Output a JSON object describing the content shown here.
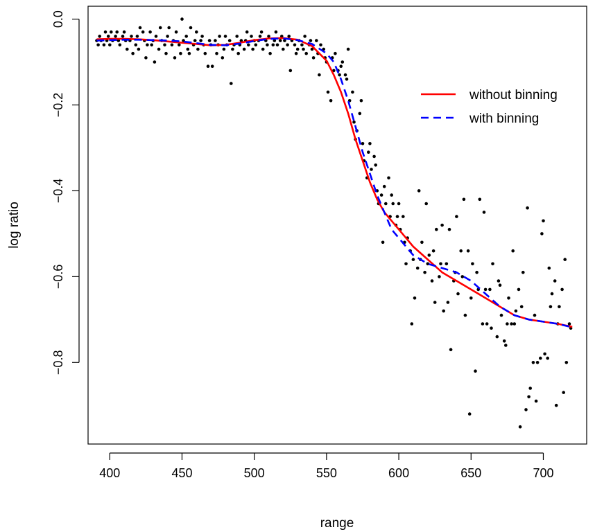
{
  "chart_data": {
    "type": "scatter",
    "xlabel": "range",
    "ylabel": "log ratio",
    "xlim": [
      385,
      730
    ],
    "ylim": [
      -0.99,
      0.03
    ],
    "x_ticks": [
      400,
      450,
      500,
      550,
      600,
      650,
      700
    ],
    "x_tick_labels": [
      "400",
      "450",
      "500",
      "550",
      "600",
      "650",
      "700"
    ],
    "y_ticks": [
      0.0,
      -0.2,
      -0.4,
      -0.6,
      -0.8
    ],
    "y_tick_labels": [
      "0.0",
      "−0.2",
      "−0.4",
      "−0.6",
      "−0.8"
    ],
    "grid": false,
    "legend_position": "top-right",
    "points": [
      [
        391,
        -0.05
      ],
      [
        392,
        -0.06
      ],
      [
        393,
        -0.04
      ],
      [
        394,
        -0.05
      ],
      [
        396,
        -0.06
      ],
      [
        397,
        -0.03
      ],
      [
        398,
        -0.05
      ],
      [
        399,
        -0.04
      ],
      [
        400,
        -0.06
      ],
      [
        401,
        -0.03
      ],
      [
        402,
        -0.05
      ],
      [
        404,
        -0.04
      ],
      [
        405,
        -0.03
      ],
      [
        406,
        -0.05
      ],
      [
        407,
        -0.06
      ],
      [
        409,
        -0.04
      ],
      [
        410,
        -0.03
      ],
      [
        411,
        -0.05
      ],
      [
        412,
        -0.07
      ],
      [
        414,
        -0.05
      ],
      [
        415,
        -0.04
      ],
      [
        416,
        -0.08
      ],
      [
        418,
        -0.06
      ],
      [
        419,
        -0.04
      ],
      [
        420,
        -0.07
      ],
      [
        421,
        -0.02
      ],
      [
        423,
        -0.03
      ],
      [
        424,
        -0.05
      ],
      [
        425,
        -0.09
      ],
      [
        426,
        -0.06
      ],
      [
        428,
        -0.03
      ],
      [
        429,
        -0.06
      ],
      [
        430,
        -0.05
      ],
      [
        431,
        -0.1
      ],
      [
        432,
        -0.04
      ],
      [
        434,
        -0.07
      ],
      [
        435,
        -0.02
      ],
      [
        436,
        -0.05
      ],
      [
        438,
        -0.06
      ],
      [
        439,
        -0.08
      ],
      [
        440,
        -0.04
      ],
      [
        441,
        -0.02
      ],
      [
        443,
        -0.06
      ],
      [
        444,
        -0.05
      ],
      [
        445,
        -0.09
      ],
      [
        446,
        -0.03
      ],
      [
        448,
        -0.06
      ],
      [
        449,
        -0.08
      ],
      [
        450,
        0.0
      ],
      [
        451,
        -0.05
      ],
      [
        453,
        -0.04
      ],
      [
        454,
        -0.07
      ],
      [
        455,
        -0.08
      ],
      [
        456,
        -0.02
      ],
      [
        458,
        -0.06
      ],
      [
        459,
        -0.05
      ],
      [
        460,
        -0.03
      ],
      [
        461,
        -0.07
      ],
      [
        463,
        -0.05
      ],
      [
        464,
        -0.04
      ],
      [
        465,
        -0.06
      ],
      [
        466,
        -0.08
      ],
      [
        468,
        -0.11
      ],
      [
        469,
        -0.05
      ],
      [
        470,
        -0.06
      ],
      [
        471,
        -0.11
      ],
      [
        473,
        -0.05
      ],
      [
        474,
        -0.08
      ],
      [
        475,
        -0.06
      ],
      [
        476,
        -0.04
      ],
      [
        478,
        -0.09
      ],
      [
        479,
        -0.07
      ],
      [
        480,
        -0.04
      ],
      [
        481,
        -0.06
      ],
      [
        483,
        -0.05
      ],
      [
        484,
        -0.15
      ],
      [
        485,
        -0.07
      ],
      [
        486,
        -0.06
      ],
      [
        488,
        -0.04
      ],
      [
        489,
        -0.08
      ],
      [
        490,
        -0.06
      ],
      [
        491,
        -0.05
      ],
      [
        493,
        -0.07
      ],
      [
        494,
        -0.05
      ],
      [
        495,
        -0.03
      ],
      [
        496,
        -0.06
      ],
      [
        498,
        -0.04
      ],
      [
        499,
        -0.07
      ],
      [
        500,
        -0.05
      ],
      [
        501,
        -0.06
      ],
      [
        503,
        -0.05
      ],
      [
        504,
        -0.04
      ],
      [
        505,
        -0.03
      ],
      [
        506,
        -0.07
      ],
      [
        508,
        -0.05
      ],
      [
        509,
        -0.06
      ],
      [
        510,
        -0.04
      ],
      [
        511,
        -0.08
      ],
      [
        513,
        -0.06
      ],
      [
        514,
        -0.05
      ],
      [
        515,
        -0.03
      ],
      [
        516,
        -0.06
      ],
      [
        518,
        -0.05
      ],
      [
        519,
        -0.04
      ],
      [
        520,
        -0.07
      ],
      [
        521,
        -0.05
      ],
      [
        523,
        -0.06
      ],
      [
        524,
        -0.04
      ],
      [
        525,
        -0.12
      ],
      [
        526,
        -0.05
      ],
      [
        528,
        -0.06
      ],
      [
        529,
        -0.08
      ],
      [
        530,
        -0.07
      ],
      [
        531,
        -0.05
      ],
      [
        533,
        -0.06
      ],
      [
        534,
        -0.07
      ],
      [
        535,
        -0.04
      ],
      [
        536,
        -0.08
      ],
      [
        538,
        -0.06
      ],
      [
        539,
        -0.05
      ],
      [
        540,
        -0.07
      ],
      [
        541,
        -0.09
      ],
      [
        543,
        -0.05
      ],
      [
        544,
        -0.08
      ],
      [
        545,
        -0.13
      ],
      [
        546,
        -0.06
      ],
      [
        548,
        -0.07
      ],
      [
        549,
        -0.09
      ],
      [
        550,
        -0.1
      ],
      [
        551,
        -0.17
      ],
      [
        553,
        -0.19
      ],
      [
        554,
        -0.09
      ],
      [
        555,
        -0.12
      ],
      [
        556,
        -0.08
      ],
      [
        558,
        -0.12
      ],
      [
        559,
        -0.13
      ],
      [
        560,
        -0.11
      ],
      [
        561,
        -0.1
      ],
      [
        563,
        -0.13
      ],
      [
        564,
        -0.14
      ],
      [
        565,
        -0.07
      ],
      [
        566,
        -0.19
      ],
      [
        568,
        -0.17
      ],
      [
        569,
        -0.24
      ],
      [
        570,
        -0.28
      ],
      [
        571,
        -0.26
      ],
      [
        573,
        -0.22
      ],
      [
        574,
        -0.19
      ],
      [
        575,
        -0.29
      ],
      [
        576,
        -0.33
      ],
      [
        578,
        -0.37
      ],
      [
        579,
        -0.31
      ],
      [
        580,
        -0.29
      ],
      [
        581,
        -0.35
      ],
      [
        583,
        -0.32
      ],
      [
        584,
        -0.34
      ],
      [
        585,
        -0.4
      ],
      [
        586,
        -0.43
      ],
      [
        588,
        -0.41
      ],
      [
        589,
        -0.52
      ],
      [
        590,
        -0.39
      ],
      [
        591,
        -0.43
      ],
      [
        593,
        -0.37
      ],
      [
        594,
        -0.46
      ],
      [
        595,
        -0.41
      ],
      [
        596,
        -0.43
      ],
      [
        598,
        -0.48
      ],
      [
        599,
        -0.46
      ],
      [
        600,
        -0.43
      ],
      [
        601,
        -0.49
      ],
      [
        603,
        -0.46
      ],
      [
        604,
        -0.52
      ],
      [
        605,
        -0.57
      ],
      [
        606,
        -0.51
      ],
      [
        608,
        -0.54
      ],
      [
        609,
        -0.71
      ],
      [
        610,
        -0.56
      ],
      [
        611,
        -0.65
      ],
      [
        613,
        -0.58
      ],
      [
        614,
        -0.4
      ],
      [
        615,
        -0.56
      ],
      [
        616,
        -0.52
      ],
      [
        618,
        -0.59
      ],
      [
        619,
        -0.43
      ],
      [
        620,
        -0.57
      ],
      [
        621,
        -0.55
      ],
      [
        623,
        -0.61
      ],
      [
        624,
        -0.54
      ],
      [
        625,
        -0.66
      ],
      [
        626,
        -0.49
      ],
      [
        628,
        -0.6
      ],
      [
        629,
        -0.57
      ],
      [
        630,
        -0.48
      ],
      [
        631,
        -0.68
      ],
      [
        633,
        -0.57
      ],
      [
        634,
        -0.66
      ],
      [
        635,
        -0.49
      ],
      [
        636,
        -0.77
      ],
      [
        638,
        -0.61
      ],
      [
        639,
        -0.59
      ],
      [
        640,
        -0.46
      ],
      [
        641,
        -0.64
      ],
      [
        643,
        -0.54
      ],
      [
        644,
        -0.6
      ],
      [
        645,
        -0.42
      ],
      [
        646,
        -0.69
      ],
      [
        648,
        -0.54
      ],
      [
        649,
        -0.92
      ],
      [
        650,
        -0.65
      ],
      [
        651,
        -0.57
      ],
      [
        653,
        -0.82
      ],
      [
        654,
        -0.59
      ],
      [
        655,
        -0.63
      ],
      [
        656,
        -0.42
      ],
      [
        658,
        -0.71
      ],
      [
        659,
        -0.45
      ],
      [
        660,
        -0.63
      ],
      [
        661,
        -0.71
      ],
      [
        663,
        -0.63
      ],
      [
        664,
        -0.72
      ],
      [
        665,
        -0.57
      ],
      [
        666,
        -0.66
      ],
      [
        668,
        -0.74
      ],
      [
        669,
        -0.61
      ],
      [
        670,
        -0.62
      ],
      [
        671,
        -0.69
      ],
      [
        673,
        -0.75
      ],
      [
        674,
        -0.76
      ],
      [
        675,
        -0.71
      ],
      [
        676,
        -0.65
      ],
      [
        678,
        -0.71
      ],
      [
        679,
        -0.54
      ],
      [
        680,
        -0.71
      ],
      [
        681,
        -0.68
      ],
      [
        683,
        -0.63
      ],
      [
        684,
        -0.95
      ],
      [
        685,
        -0.67
      ],
      [
        686,
        -0.59
      ],
      [
        688,
        -0.91
      ],
      [
        689,
        -0.44
      ],
      [
        690,
        -0.88
      ],
      [
        691,
        -0.86
      ],
      [
        693,
        -0.8
      ],
      [
        694,
        -0.69
      ],
      [
        695,
        -0.89
      ],
      [
        696,
        -0.8
      ],
      [
        698,
        -0.79
      ],
      [
        699,
        -0.5
      ],
      [
        700,
        -0.47
      ],
      [
        701,
        -0.78
      ],
      [
        703,
        -0.79
      ],
      [
        704,
        -0.58
      ],
      [
        705,
        -0.67
      ],
      [
        706,
        -0.64
      ],
      [
        708,
        -0.61
      ],
      [
        709,
        -0.9
      ],
      [
        710,
        -0.71
      ],
      [
        711,
        -0.67
      ],
      [
        713,
        -0.63
      ],
      [
        714,
        -0.87
      ],
      [
        715,
        -0.56
      ],
      [
        716,
        -0.8
      ],
      [
        718,
        -0.71
      ],
      [
        719,
        -0.72
      ]
    ],
    "series": [
      {
        "name": "without binning",
        "color": "#ff0000",
        "dash": "solid",
        "x": [
          391,
          400,
          410,
          420,
          430,
          440,
          450,
          460,
          470,
          480,
          490,
          500,
          510,
          520,
          530,
          540,
          550,
          555,
          560,
          565,
          570,
          575,
          580,
          585,
          590,
          595,
          600,
          605,
          610,
          620,
          630,
          640,
          650,
          660,
          670,
          680,
          690,
          700,
          710,
          720
        ],
        "y": [
          -0.047,
          -0.046,
          -0.046,
          -0.047,
          -0.049,
          -0.052,
          -0.055,
          -0.058,
          -0.061,
          -0.06,
          -0.055,
          -0.049,
          -0.045,
          -0.044,
          -0.048,
          -0.063,
          -0.097,
          -0.13,
          -0.17,
          -0.22,
          -0.28,
          -0.33,
          -0.38,
          -0.42,
          -0.45,
          -0.47,
          -0.49,
          -0.51,
          -0.53,
          -0.56,
          -0.59,
          -0.61,
          -0.63,
          -0.65,
          -0.67,
          -0.69,
          -0.7,
          -0.705,
          -0.71,
          -0.717
        ]
      },
      {
        "name": "with binning",
        "color": "#0000ff",
        "dash": "dashed",
        "x": [
          391,
          400,
          410,
          420,
          430,
          440,
          450,
          460,
          470,
          480,
          490,
          500,
          510,
          520,
          530,
          540,
          550,
          555,
          560,
          565,
          570,
          575,
          580,
          585,
          590,
          595,
          600,
          605,
          610,
          620,
          630,
          640,
          650,
          660,
          670,
          680,
          690,
          700,
          710,
          720
        ],
        "y": [
          -0.05,
          -0.049,
          -0.048,
          -0.048,
          -0.049,
          -0.05,
          -0.052,
          -0.056,
          -0.06,
          -0.061,
          -0.057,
          -0.051,
          -0.046,
          -0.045,
          -0.049,
          -0.058,
          -0.08,
          -0.1,
          -0.14,
          -0.19,
          -0.25,
          -0.31,
          -0.36,
          -0.41,
          -0.45,
          -0.49,
          -0.51,
          -0.53,
          -0.55,
          -0.57,
          -0.58,
          -0.59,
          -0.61,
          -0.64,
          -0.67,
          -0.69,
          -0.7,
          -0.705,
          -0.71,
          -0.718
        ]
      }
    ]
  }
}
